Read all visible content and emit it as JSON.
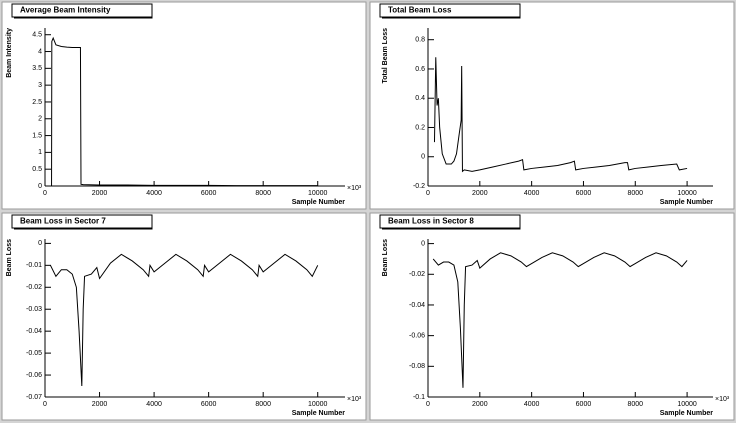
{
  "chart_data": [
    {
      "type": "line",
      "title": "Average Beam Intensity",
      "x_label": "Sample Number",
      "y_label": "Beam Intensity",
      "x_multiplier": "×10³",
      "color": "#000000",
      "x": [
        0,
        240,
        250,
        300,
        400,
        600,
        800,
        1000,
        1300,
        1320,
        1400,
        2000,
        3000,
        4000,
        5000,
        6000,
        7000,
        8000,
        9000,
        10000
      ],
      "values": [
        0,
        0,
        4.3,
        4.4,
        4.2,
        4.15,
        4.13,
        4.12,
        4.12,
        0.05,
        0.04,
        0.03,
        0.03,
        0.02,
        0.02,
        0.02,
        0.01,
        0.01,
        0.01,
        0.01
      ],
      "xlim": [
        0,
        11000
      ],
      "ylim": [
        0,
        4.7
      ],
      "xticks": [
        0,
        2000,
        4000,
        6000,
        8000,
        10000
      ],
      "yticks": [
        0,
        0.5,
        1,
        1.5,
        2,
        2.5,
        3,
        3.5,
        4,
        4.5
      ]
    },
    {
      "type": "line",
      "title": "Total Beam Loss",
      "x_label": "Sample Number",
      "y_label": "Total Beam Loss",
      "color": "#000000",
      "x": [
        250,
        300,
        350,
        400,
        450,
        550,
        700,
        900,
        1000,
        1100,
        1200,
        1280,
        1300,
        1330,
        1400,
        1700,
        2000,
        2500,
        3000,
        3500,
        3650,
        3700,
        4000,
        4500,
        5000,
        5500,
        5650,
        5700,
        6000,
        6500,
        7000,
        7600,
        7700,
        7750,
        8000,
        8500,
        9000,
        9600,
        9700,
        10000
      ],
      "values": [
        0.1,
        0.68,
        0.35,
        0.4,
        0.2,
        0.02,
        -0.05,
        -0.05,
        -0.03,
        0.02,
        0.15,
        0.25,
        0.62,
        -0.1,
        -0.09,
        -0.1,
        -0.09,
        -0.07,
        -0.05,
        -0.03,
        -0.02,
        -0.09,
        -0.08,
        -0.07,
        -0.06,
        -0.04,
        -0.03,
        -0.09,
        -0.08,
        -0.07,
        -0.06,
        -0.04,
        -0.04,
        -0.09,
        -0.08,
        -0.07,
        -0.06,
        -0.05,
        -0.09,
        -0.08
      ],
      "xlim": [
        0,
        11000
      ],
      "ylim": [
        -0.2,
        0.88
      ],
      "xticks": [
        0,
        2000,
        4000,
        6000,
        8000,
        10000
      ],
      "yticks": [
        -0.2,
        0,
        0.2,
        0.4,
        0.6,
        0.8
      ]
    },
    {
      "type": "line",
      "title": "Beam Loss in Sector 7",
      "x_label": "Sample Number",
      "y_label": "Beam Loss",
      "x_multiplier": "×10³",
      "color": "#000000",
      "x": [
        200,
        400,
        600,
        800,
        1000,
        1150,
        1250,
        1350,
        1400,
        1450,
        1700,
        1900,
        2000,
        2400,
        2800,
        3200,
        3600,
        3800,
        3850,
        4000,
        4400,
        4800,
        5200,
        5600,
        5800,
        5850,
        6000,
        6400,
        6800,
        7200,
        7600,
        7800,
        7850,
        8000,
        8400,
        8800,
        9200,
        9600,
        9800,
        10000
      ],
      "values": [
        -0.01,
        -0.015,
        -0.012,
        -0.012,
        -0.014,
        -0.02,
        -0.04,
        -0.065,
        -0.03,
        -0.015,
        -0.014,
        -0.011,
        -0.016,
        -0.009,
        -0.005,
        -0.008,
        -0.012,
        -0.015,
        -0.01,
        -0.013,
        -0.009,
        -0.005,
        -0.008,
        -0.012,
        -0.015,
        -0.01,
        -0.013,
        -0.009,
        -0.005,
        -0.008,
        -0.012,
        -0.015,
        -0.01,
        -0.013,
        -0.009,
        -0.005,
        -0.008,
        -0.012,
        -0.015,
        -0.01
      ],
      "xlim": [
        0,
        11000
      ],
      "ylim": [
        -0.07,
        0.002
      ],
      "xticks": [
        0,
        2000,
        4000,
        6000,
        8000,
        10000
      ],
      "yticks": [
        -0.07,
        -0.06,
        -0.05,
        -0.04,
        -0.03,
        -0.02,
        -0.01,
        0
      ]
    },
    {
      "type": "line",
      "title": "Beam Loss in Sector 8",
      "x_label": "Sample Number",
      "y_label": "Beam Loss",
      "x_multiplier": "×10³",
      "color": "#000000",
      "x": [
        200,
        400,
        600,
        800,
        1000,
        1150,
        1250,
        1350,
        1400,
        1450,
        1700,
        1900,
        2000,
        2400,
        2800,
        3200,
        3600,
        3800,
        4000,
        4400,
        4800,
        5200,
        5600,
        5800,
        6000,
        6400,
        6800,
        7200,
        7600,
        7800,
        8000,
        8400,
        8800,
        9200,
        9600,
        9800,
        10000
      ],
      "values": [
        -0.01,
        -0.014,
        -0.012,
        -0.012,
        -0.014,
        -0.025,
        -0.055,
        -0.094,
        -0.04,
        -0.015,
        -0.014,
        -0.011,
        -0.016,
        -0.01,
        -0.006,
        -0.008,
        -0.012,
        -0.015,
        -0.013,
        -0.009,
        -0.006,
        -0.008,
        -0.012,
        -0.015,
        -0.013,
        -0.009,
        -0.006,
        -0.008,
        -0.012,
        -0.015,
        -0.013,
        -0.009,
        -0.006,
        -0.008,
        -0.012,
        -0.015,
        -0.011
      ],
      "xlim": [
        0,
        11000
      ],
      "ylim": [
        -0.1,
        0.003
      ],
      "xticks": [
        0,
        2000,
        4000,
        6000,
        8000,
        10000
      ],
      "yticks": [
        -0.1,
        -0.08,
        -0.06,
        -0.04,
        -0.02,
        0
      ]
    }
  ]
}
